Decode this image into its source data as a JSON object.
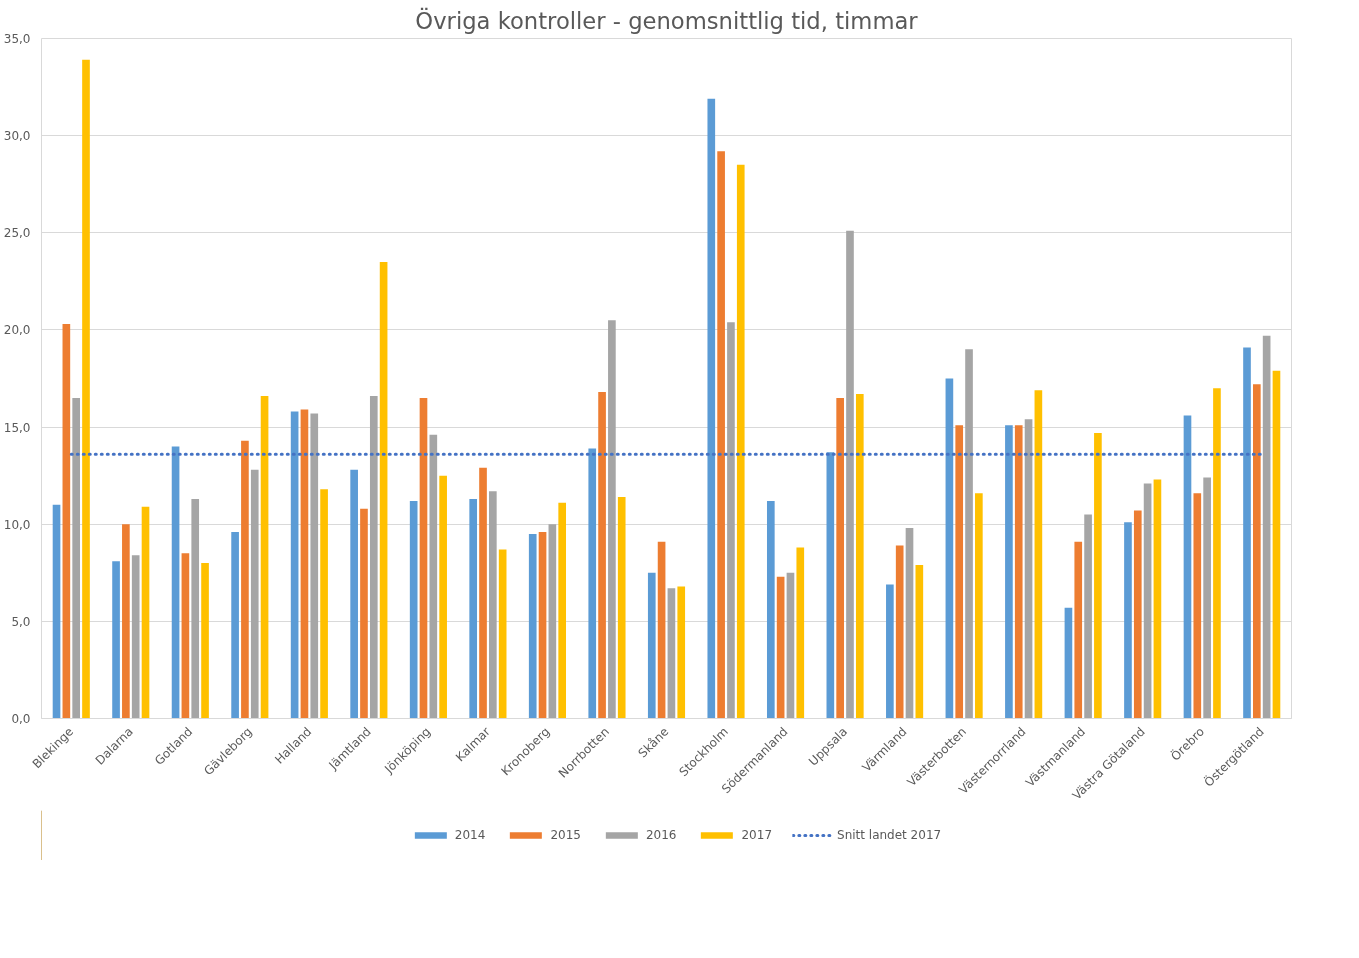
{
  "chart_data": {
    "type": "bar",
    "title": "Övriga kontroller - genomsnittlig tid, timmar",
    "categories": [
      "Blekinge",
      "Dalarna",
      "Gotland",
      "Gävleborg",
      "Halland",
      "Jämtland",
      "Jönköping",
      "Kalmar",
      "Kronoberg",
      "Norrbotten",
      "Skåne",
      "Stockholm",
      "Södermanland",
      "Uppsala",
      "Värmland",
      "Västerbotten",
      "Västernorrland",
      "Västmanland",
      "Västra Götaland",
      "Örebro",
      "Östergötland"
    ],
    "series": [
      {
        "name": "2014",
        "color": "#5b9bd5",
        "values": [
          11.0,
          8.1,
          14.0,
          9.6,
          15.8,
          12.8,
          11.2,
          11.3,
          9.5,
          13.9,
          7.5,
          31.9,
          11.2,
          13.7,
          6.9,
          17.5,
          15.1,
          5.7,
          10.1,
          15.6,
          19.1
        ]
      },
      {
        "name": "2015",
        "color": "#ed7d31",
        "values": [
          20.3,
          10.0,
          8.5,
          14.3,
          15.9,
          10.8,
          16.5,
          12.9,
          9.6,
          16.8,
          9.1,
          29.2,
          7.3,
          16.5,
          8.9,
          15.1,
          15.1,
          9.1,
          10.7,
          11.6,
          17.2
        ]
      },
      {
        "name": "2016",
        "color": "#a5a5a5",
        "values": [
          16.5,
          8.4,
          11.3,
          12.8,
          15.7,
          16.6,
          14.6,
          11.7,
          10.0,
          20.5,
          6.7,
          20.4,
          7.5,
          25.1,
          9.8,
          19.0,
          15.4,
          10.5,
          12.1,
          12.4,
          19.7
        ]
      },
      {
        "name": "2017",
        "color": "#ffc000",
        "values": [
          33.9,
          10.9,
          8.0,
          16.6,
          11.8,
          23.5,
          12.5,
          8.7,
          11.1,
          11.4,
          6.8,
          28.5,
          8.8,
          16.7,
          7.9,
          11.6,
          16.9,
          14.7,
          12.3,
          17.0,
          17.9
        ]
      }
    ],
    "ref_lines": [
      {
        "axis": "y",
        "value": 13.6,
        "label": "Snitt landet 2017",
        "color": "#4472c4",
        "line_style": "dotted"
      }
    ],
    "ylim": [
      0,
      35
    ],
    "yticks": [
      {
        "value": 0,
        "label": "0,0"
      },
      {
        "value": 5,
        "label": "5,0"
      },
      {
        "value": 10,
        "label": "10,0"
      },
      {
        "value": 15,
        "label": "15,0"
      },
      {
        "value": 20,
        "label": "20,0"
      },
      {
        "value": 25,
        "label": "25,0"
      },
      {
        "value": 30,
        "label": "30,0"
      },
      {
        "value": 35,
        "label": "35,0"
      }
    ],
    "grid": "y",
    "legend": "bottom"
  }
}
